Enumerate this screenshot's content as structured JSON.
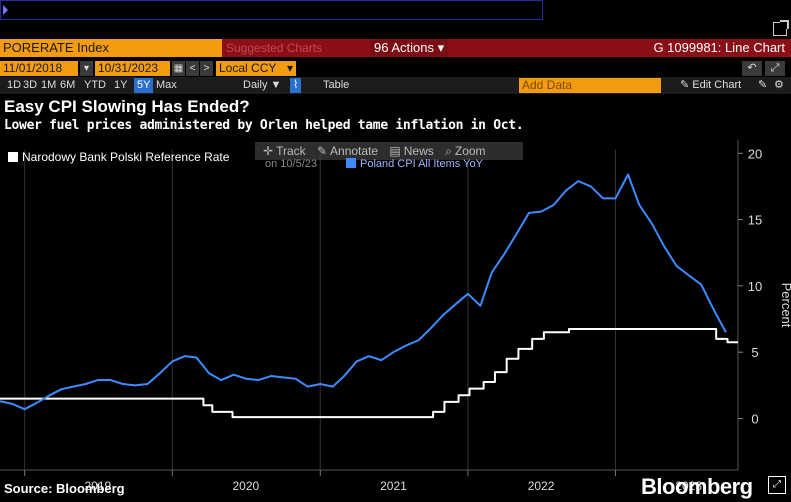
{
  "header": {
    "ticker": "PORERATE Index",
    "suggested_charts": "Suggested Charts",
    "actions_label": "96 Actions",
    "graph_title": "G 1099981: Line Chart",
    "start_date": "11/01/2018",
    "end_date": "10/31/2023",
    "currency": "Local CCY",
    "ranges": [
      "1D",
      "3D",
      "1M",
      "6M",
      "YTD",
      "1Y",
      "5Y",
      "Max"
    ],
    "active_range": "5Y",
    "frequency": "Daily ▼",
    "table_label": "Table",
    "add_data_placeholder": "Add Data",
    "edit_chart_label": "✎ Edit Chart"
  },
  "chart_toolbox": {
    "track": "Track",
    "annotate": "Annotate",
    "news": "News",
    "zoom": "Zoom",
    "hover_date": "on 10/5/23"
  },
  "chart_data": {
    "type": "line",
    "title": "Easy CPI Slowing Has Ended?",
    "subtitle": "Lower fuel prices administered by Orlen helped tame inflation in Oct.",
    "ylabel": "Percent",
    "ylim": [
      -2,
      21
    ],
    "yticks": [
      0,
      5,
      10,
      15,
      20
    ],
    "xlim": [
      "2018-11-01",
      "2023-10-31"
    ],
    "x_labels": [
      {
        "label": "2019",
        "date": "2019-07-01"
      },
      {
        "label": "2020",
        "date": "2020-07-01"
      },
      {
        "label": "2021",
        "date": "2021-07-01"
      },
      {
        "label": "2022",
        "date": "2022-07-01"
      },
      {
        "label": "2023",
        "date": "2023-07-01"
      }
    ],
    "x_separators": [
      "2019-01-01",
      "2020-01-01",
      "2021-01-01",
      "2022-01-01",
      "2023-01-01"
    ],
    "series": [
      {
        "name": "Narodowy Bank Polski Reference Rate",
        "color": "#ffffff",
        "step": true,
        "points": [
          [
            "2018-11-01",
            1.5
          ],
          [
            "2020-03-18",
            1.0
          ],
          [
            "2020-04-09",
            0.5
          ],
          [
            "2020-05-29",
            0.1
          ],
          [
            "2021-10-07",
            0.5
          ],
          [
            "2021-11-04",
            1.25
          ],
          [
            "2021-12-09",
            1.75
          ],
          [
            "2022-01-05",
            2.25
          ],
          [
            "2022-02-09",
            2.75
          ],
          [
            "2022-03-09",
            3.5
          ],
          [
            "2022-04-07",
            4.5
          ],
          [
            "2022-05-06",
            5.25
          ],
          [
            "2022-06-09",
            6.0
          ],
          [
            "2022-07-08",
            6.5
          ],
          [
            "2022-09-08",
            6.75
          ],
          [
            "2023-09-07",
            6.0
          ],
          [
            "2023-10-05",
            5.75
          ],
          [
            "2023-10-31",
            5.75
          ]
        ]
      },
      {
        "name": "Poland CPI All Items YoY",
        "color": "#3d8bff",
        "step": false,
        "points": [
          [
            "2018-11-01",
            1.3
          ],
          [
            "2018-12-01",
            1.1
          ],
          [
            "2019-01-01",
            0.7
          ],
          [
            "2019-02-01",
            1.2
          ],
          [
            "2019-03-01",
            1.7
          ],
          [
            "2019-04-01",
            2.2
          ],
          [
            "2019-05-01",
            2.4
          ],
          [
            "2019-06-01",
            2.6
          ],
          [
            "2019-07-01",
            2.9
          ],
          [
            "2019-08-01",
            2.9
          ],
          [
            "2019-09-01",
            2.6
          ],
          [
            "2019-10-01",
            2.5
          ],
          [
            "2019-11-01",
            2.6
          ],
          [
            "2019-12-01",
            3.4
          ],
          [
            "2020-01-01",
            4.3
          ],
          [
            "2020-02-01",
            4.7
          ],
          [
            "2020-03-01",
            4.6
          ],
          [
            "2020-04-01",
            3.4
          ],
          [
            "2020-05-01",
            2.9
          ],
          [
            "2020-06-01",
            3.3
          ],
          [
            "2020-07-01",
            3.0
          ],
          [
            "2020-08-01",
            2.9
          ],
          [
            "2020-09-01",
            3.2
          ],
          [
            "2020-10-01",
            3.1
          ],
          [
            "2020-11-01",
            3.0
          ],
          [
            "2020-12-01",
            2.4
          ],
          [
            "2021-01-01",
            2.6
          ],
          [
            "2021-02-01",
            2.4
          ],
          [
            "2021-03-01",
            3.2
          ],
          [
            "2021-04-01",
            4.3
          ],
          [
            "2021-05-01",
            4.7
          ],
          [
            "2021-06-01",
            4.4
          ],
          [
            "2021-07-01",
            5.0
          ],
          [
            "2021-08-01",
            5.5
          ],
          [
            "2021-09-01",
            5.9
          ],
          [
            "2021-10-01",
            6.8
          ],
          [
            "2021-11-01",
            7.8
          ],
          [
            "2021-12-01",
            8.6
          ],
          [
            "2022-01-01",
            9.4
          ],
          [
            "2022-02-01",
            8.5
          ],
          [
            "2022-03-01",
            11.0
          ],
          [
            "2022-04-01",
            12.4
          ],
          [
            "2022-05-01",
            13.9
          ],
          [
            "2022-06-01",
            15.5
          ],
          [
            "2022-07-01",
            15.6
          ],
          [
            "2022-08-01",
            16.1
          ],
          [
            "2022-09-01",
            17.2
          ],
          [
            "2022-10-01",
            17.9
          ],
          [
            "2022-11-01",
            17.5
          ],
          [
            "2022-12-01",
            16.6
          ],
          [
            "2023-01-01",
            16.6
          ],
          [
            "2023-02-01",
            18.4
          ],
          [
            "2023-03-01",
            16.1
          ],
          [
            "2023-04-01",
            14.7
          ],
          [
            "2023-05-01",
            13.0
          ],
          [
            "2023-06-01",
            11.5
          ],
          [
            "2023-07-01",
            10.8
          ],
          [
            "2023-08-01",
            10.1
          ],
          [
            "2023-09-01",
            8.2
          ],
          [
            "2023-10-01",
            6.5
          ]
        ]
      }
    ]
  },
  "footer": {
    "source": "Source: Bloomberg",
    "brand": "Bloomberg"
  }
}
